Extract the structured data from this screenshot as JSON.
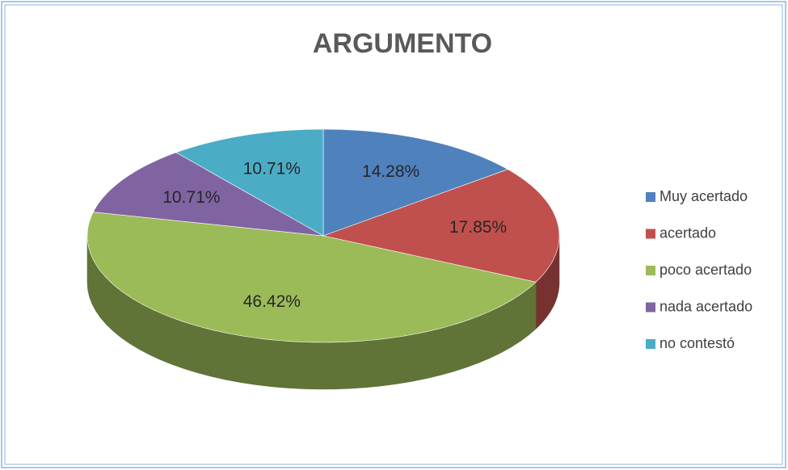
{
  "chart_data": {
    "type": "pie",
    "title": "ARGUMENTO",
    "categories": [
      "Muy acertado",
      "acertado",
      "poco acertado",
      "nada acertado",
      "no contestó"
    ],
    "values": [
      14.28,
      17.85,
      46.42,
      10.71,
      10.71
    ],
    "value_labels": [
      "14.28%",
      "17.85%",
      "46.42%",
      "10.71%",
      "10.71%"
    ],
    "colors": [
      "#4f81bd",
      "#c0504d",
      "#9bbb59",
      "#8064a2",
      "#4bacc6"
    ],
    "legend": "right"
  }
}
